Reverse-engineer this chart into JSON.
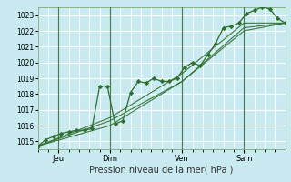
{
  "title": "",
  "xlabel": "Pression niveau de la mer( hPa )",
  "bg_color": "#c8eaf0",
  "grid_color": "#ffffff",
  "line_color": "#2d6e2d",
  "marker_color": "#2d6e2d",
  "ylim": [
    1014.5,
    1023.5
  ],
  "xlim": [
    0,
    96
  ],
  "yticks": [
    1015,
    1016,
    1017,
    1018,
    1019,
    1020,
    1021,
    1022,
    1023
  ],
  "day_ticks": [
    {
      "x": 8,
      "label": "Jeu"
    },
    {
      "x": 28,
      "label": "Dim"
    },
    {
      "x": 56,
      "label": "Ven"
    },
    {
      "x": 80,
      "label": "Sam"
    }
  ],
  "vlines": [
    8,
    28,
    56,
    80
  ],
  "series": [
    {
      "x": [
        0,
        3,
        6,
        9,
        12,
        15,
        18,
        21,
        24,
        27,
        30,
        33,
        36,
        39,
        42,
        45,
        48,
        51,
        54,
        57,
        60,
        63,
        66,
        69,
        72,
        75,
        78,
        81,
        84,
        87,
        90,
        93,
        96
      ],
      "y": [
        1014.7,
        1015.1,
        1015.3,
        1015.5,
        1015.6,
        1015.7,
        1015.7,
        1015.8,
        1018.5,
        1018.5,
        1016.1,
        1016.3,
        1018.1,
        1018.8,
        1018.7,
        1019.0,
        1018.8,
        1018.8,
        1019.0,
        1019.7,
        1020.0,
        1019.8,
        1020.5,
        1021.2,
        1022.2,
        1022.3,
        1022.5,
        1023.1,
        1023.3,
        1023.5,
        1023.4,
        1022.8,
        1022.5
      ],
      "has_markers": true
    },
    {
      "x": [
        0,
        28,
        56,
        80,
        96
      ],
      "y": [
        1014.7,
        1016.0,
        1018.8,
        1022.0,
        1022.5
      ],
      "has_markers": false
    },
    {
      "x": [
        0,
        28,
        56,
        80,
        96
      ],
      "y": [
        1014.7,
        1016.3,
        1018.8,
        1022.2,
        1022.5
      ],
      "has_markers": false
    },
    {
      "x": [
        0,
        28,
        56,
        80,
        96
      ],
      "y": [
        1014.7,
        1016.5,
        1019.3,
        1022.5,
        1022.5
      ],
      "has_markers": false
    }
  ]
}
